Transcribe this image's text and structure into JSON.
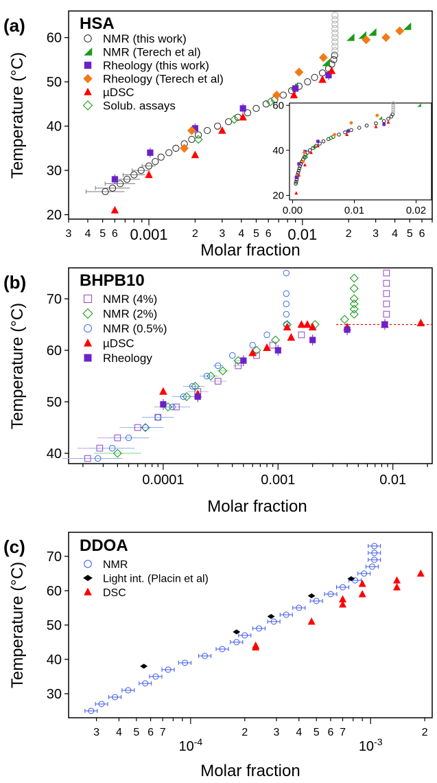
{
  "chart_data": [
    {
      "type": "scatter",
      "panel_label": "(a)",
      "title": "HSA",
      "xlabel": "Molar fraction",
      "ylabel": "Temperature (°C)",
      "x_scale": "log",
      "xlim": [
        0.0003,
        0.07
      ],
      "ylim": [
        19,
        66
      ],
      "y_ticks": [
        20,
        30,
        40,
        50,
        60
      ],
      "x_major_labels": [
        "0.001",
        "0.01"
      ],
      "x_minor_labels": [
        "3",
        "4",
        "5",
        "6",
        "2",
        "3",
        "4",
        "5",
        "6",
        "2",
        "3",
        "4",
        "5",
        "6"
      ],
      "legend_position": "top-left",
      "series": [
        {
          "name": "NMR (this work)",
          "marker": "circle-open",
          "color": "#222222",
          "points": [
            [
              0.00052,
              25.2
            ],
            [
              0.00058,
              26
            ],
            [
              0.00065,
              27
            ],
            [
              0.00072,
              28
            ],
            [
              0.0008,
              29
            ],
            [
              0.00089,
              30
            ],
            [
              0.001,
              31
            ],
            [
              0.0011,
              32
            ],
            [
              0.0012,
              33
            ],
            [
              0.00135,
              34
            ],
            [
              0.0015,
              35
            ],
            [
              0.0017,
              36
            ],
            [
              0.0019,
              37
            ],
            [
              0.0021,
              38
            ],
            [
              0.0024,
              39
            ],
            [
              0.0028,
              40
            ],
            [
              0.0033,
              41
            ],
            [
              0.0038,
              42
            ],
            [
              0.0044,
              43
            ],
            [
              0.005,
              44
            ],
            [
              0.0058,
              45
            ],
            [
              0.0066,
              46
            ],
            [
              0.0075,
              47
            ],
            [
              0.0085,
              48
            ],
            [
              0.0095,
              49
            ],
            [
              0.0108,
              50
            ],
            [
              0.012,
              51
            ],
            [
              0.0135,
              52
            ],
            [
              0.0148,
              53
            ],
            [
              0.0155,
              54
            ],
            [
              0.016,
              55
            ],
            [
              0.0162,
              56
            ],
            [
              0.0163,
              57
            ],
            [
              0.0163,
              58
            ],
            [
              0.0163,
              59
            ],
            [
              0.0163,
              60
            ],
            [
              0.0163,
              61
            ],
            [
              0.0163,
              62
            ],
            [
              0.0163,
              63
            ],
            [
              0.0163,
              64
            ],
            [
              0.0163,
              65
            ]
          ]
        },
        {
          "name": "NMR (Terech et al)",
          "marker": "triangle-green",
          "color": "#1a9a1a",
          "points": [
            [
              0.0088,
              49
            ],
            [
              0.0142,
              54.3
            ],
            [
              0.0205,
              60
            ],
            [
              0.0245,
              60.5
            ],
            [
              0.0285,
              61.2
            ],
            [
              0.048,
              62.5
            ]
          ]
        },
        {
          "name": "Rheology (this work)",
          "marker": "square-filled",
          "color": "#6a22c8",
          "points": [
            [
              0.0006,
              28
            ],
            [
              0.00102,
              34
            ],
            [
              0.002,
              39.5
            ],
            [
              0.0041,
              44
            ],
            [
              0.009,
              48.5
            ],
            [
              0.0148,
              51.5
            ]
          ]
        },
        {
          "name": "Rheology (Terech et al)",
          "marker": "diamond-filled",
          "color": "#f07b16",
          "points": [
            [
              0.0019,
              39
            ],
            [
              0.0017,
              35
            ],
            [
              0.0068,
              47
            ],
            [
              0.0095,
              52.2
            ],
            [
              0.0137,
              55.5
            ],
            [
              0.026,
              59.5
            ],
            [
              0.035,
              60
            ],
            [
              0.043,
              61.5
            ]
          ]
        },
        {
          "name": "µDSC",
          "marker": "triangle-filled",
          "color": "#ff0000",
          "points": [
            [
              0.0006,
              21
            ],
            [
              0.001,
              29
            ],
            [
              0.002,
              33.5
            ],
            [
              0.003,
              39
            ],
            [
              0.0041,
              42
            ],
            [
              0.0088,
              47
            ],
            [
              0.0135,
              50.5
            ],
            [
              0.0155,
              52.5
            ]
          ]
        },
        {
          "name": "Solub. assays",
          "marker": "diamond-open",
          "color": "#1a9a1a",
          "points": [
            [
              0.0021,
              37
            ],
            [
              0.0036,
              41.5
            ],
            [
              0.0062,
              45.5
            ]
          ]
        }
      ],
      "inset": {
        "x_scale": "linear",
        "xlim": [
          -0.0005,
          0.0225
        ],
        "ylim": [
          18,
          61
        ],
        "x_tick_labels": [
          "0.00",
          "0.01",
          "0.02"
        ],
        "y_tick_labels": [
          "20",
          "40",
          "60"
        ]
      }
    },
    {
      "type": "scatter",
      "panel_label": "(b)",
      "title": "BHPB10",
      "xlabel": "Molar fraction",
      "ylabel": "Temperature (°C)",
      "x_scale": "log",
      "xlim": [
        1.5e-05,
        0.022
      ],
      "ylim": [
        38,
        76
      ],
      "y_ticks": [
        40,
        50,
        60,
        70
      ],
      "x_major_labels": [
        "0.0001",
        "0.001",
        "0.01"
      ],
      "reference_line_y": 65,
      "legend_position": "top-left",
      "series": [
        {
          "name": "NMR (4%)",
          "marker": "square-open",
          "color": "#9a50c8",
          "points": [
            [
              2.2e-05,
              39
            ],
            [
              2.8e-05,
              41
            ],
            [
              4e-05,
              43
            ],
            [
              6e-05,
              45
            ],
            [
              9e-05,
              47
            ],
            [
              0.00013,
              49
            ],
            [
              0.0002,
              52
            ],
            [
              0.0003,
              54
            ],
            [
              0.00045,
              57
            ],
            [
              0.00065,
              59
            ],
            [
              0.0009,
              61
            ],
            [
              0.0016,
              63
            ],
            [
              0.0085,
              65
            ],
            [
              0.0088,
              67
            ],
            [
              0.0088,
              69
            ],
            [
              0.0088,
              71
            ],
            [
              0.0088,
              73
            ],
            [
              0.0088,
              75
            ]
          ]
        },
        {
          "name": "NMR (2%)",
          "marker": "diamond-open",
          "color": "#1a9a1a",
          "points": [
            [
              4e-05,
              40
            ],
            [
              7e-05,
              45
            ],
            [
              0.00011,
              49
            ],
            [
              0.00016,
              51
            ],
            [
              0.00019,
              53
            ],
            [
              0.00026,
              55
            ],
            [
              0.00033,
              56
            ],
            [
              0.00045,
              58
            ],
            [
              0.00065,
              60
            ],
            [
              0.00095,
              62
            ],
            [
              0.0012,
              65
            ],
            [
              0.0021,
              65
            ],
            [
              0.0038,
              66
            ],
            [
              0.0046,
              67
            ],
            [
              0.0046,
              68
            ],
            [
              0.0046,
              69
            ],
            [
              0.0046,
              70
            ],
            [
              0.0046,
              72
            ],
            [
              0.0046,
              74
            ]
          ]
        },
        {
          "name": "NMR (0.5%)",
          "marker": "circle-open",
          "color": "#3a6ee8",
          "points": [
            [
              2.7e-05,
              39
            ],
            [
              3.6e-05,
              41
            ],
            [
              5e-05,
              43
            ],
            [
              7e-05,
              45
            ],
            [
              9e-05,
              47
            ],
            [
              0.00012,
              49
            ],
            [
              0.00015,
              51
            ],
            [
              0.00018,
              53
            ],
            [
              0.00024,
              55
            ],
            [
              0.0003,
              57
            ],
            [
              0.0004,
              59
            ],
            [
              0.0006,
              61
            ],
            [
              0.0008,
              63
            ],
            [
              0.00118,
              65
            ],
            [
              0.00118,
              67
            ],
            [
              0.00118,
              69
            ],
            [
              0.00118,
              71
            ],
            [
              0.00118,
              75
            ]
          ]
        },
        {
          "name": "µDSC",
          "marker": "triangle-filled",
          "color": "#ff0000",
          "points": [
            [
              0.0001,
              52
            ],
            [
              0.0002,
              51.5
            ],
            [
              0.0006,
              59.5
            ],
            [
              0.0008,
              60.5
            ],
            [
              0.0012,
              64.5
            ],
            [
              0.0013,
              62.5
            ],
            [
              0.0016,
              65
            ],
            [
              0.0018,
              65
            ],
            [
              0.002,
              64.5
            ],
            [
              0.004,
              64.5
            ],
            [
              0.0085,
              65
            ],
            [
              0.0175,
              65.3
            ]
          ]
        },
        {
          "name": "Rheology",
          "marker": "square-filled",
          "color": "#6a22c8",
          "points": [
            [
              0.0001,
              49.5
            ],
            [
              0.0002,
              51
            ],
            [
              0.0005,
              58
            ],
            [
              0.001,
              60
            ],
            [
              0.002,
              62
            ],
            [
              0.004,
              64
            ],
            [
              0.0085,
              65
            ]
          ]
        }
      ]
    },
    {
      "type": "scatter",
      "panel_label": "(c)",
      "title": "DDOA",
      "xlabel": "Molar fraction",
      "ylabel": "Temperature (°C)",
      "x_scale": "log",
      "xlim": [
        2.1e-05,
        0.0022
      ],
      "ylim": [
        23,
        77
      ],
      "y_ticks": [
        30,
        40,
        50,
        60,
        70
      ],
      "x_major_labels": [
        "10-4",
        "10-3"
      ],
      "x_minor_labels": [
        "3",
        "4",
        "5",
        "6",
        "7",
        "2",
        "3",
        "4",
        "5",
        "6",
        "7",
        "2"
      ],
      "legend_position": "top-left",
      "series": [
        {
          "name": "NMR",
          "marker": "circle-open",
          "color": "#3a55e8",
          "points": [
            [
              2.8e-05,
              25
            ],
            [
              3.2e-05,
              27
            ],
            [
              3.8e-05,
              29
            ],
            [
              4.5e-05,
              31
            ],
            [
              5.6e-05,
              33
            ],
            [
              6.4e-05,
              35
            ],
            [
              7.5e-05,
              37
            ],
            [
              9.3e-05,
              39
            ],
            [
              0.00012,
              41
            ],
            [
              0.00015,
              43
            ],
            [
              0.00018,
              45
            ],
            [
              0.0002,
              47
            ],
            [
              0.00024,
              49
            ],
            [
              0.00029,
              51
            ],
            [
              0.00034,
              53
            ],
            [
              0.0004,
              55
            ],
            [
              0.0005,
              57
            ],
            [
              0.0006,
              59
            ],
            [
              0.0007,
              61
            ],
            [
              0.00082,
              63
            ],
            [
              0.00092,
              65
            ],
            [
              0.00102,
              67
            ],
            [
              0.00105,
              69
            ],
            [
              0.00105,
              71
            ],
            [
              0.00105,
              73
            ]
          ]
        },
        {
          "name": "Light int. (Placin et al)",
          "marker": "diamond-black",
          "color": "#000000",
          "points": [
            [
              5.5e-05,
              38
            ],
            [
              0.00018,
              48
            ],
            [
              0.00028,
              52.5
            ],
            [
              0.00047,
              58.5
            ],
            [
              0.00078,
              63.5
            ]
          ]
        },
        {
          "name": "DSC",
          "marker": "triangle-filled",
          "color": "#ff0000",
          "points": [
            [
              0.00023,
              43.5
            ],
            [
              0.00023,
              44
            ],
            [
              0.00047,
              51
            ],
            [
              0.0007,
              56
            ],
            [
              0.0007,
              57.5
            ],
            [
              0.0009,
              59
            ],
            [
              0.0009,
              62
            ],
            [
              0.0014,
              61
            ],
            [
              0.0014,
              63
            ],
            [
              0.0019,
              65
            ]
          ]
        }
      ]
    }
  ]
}
